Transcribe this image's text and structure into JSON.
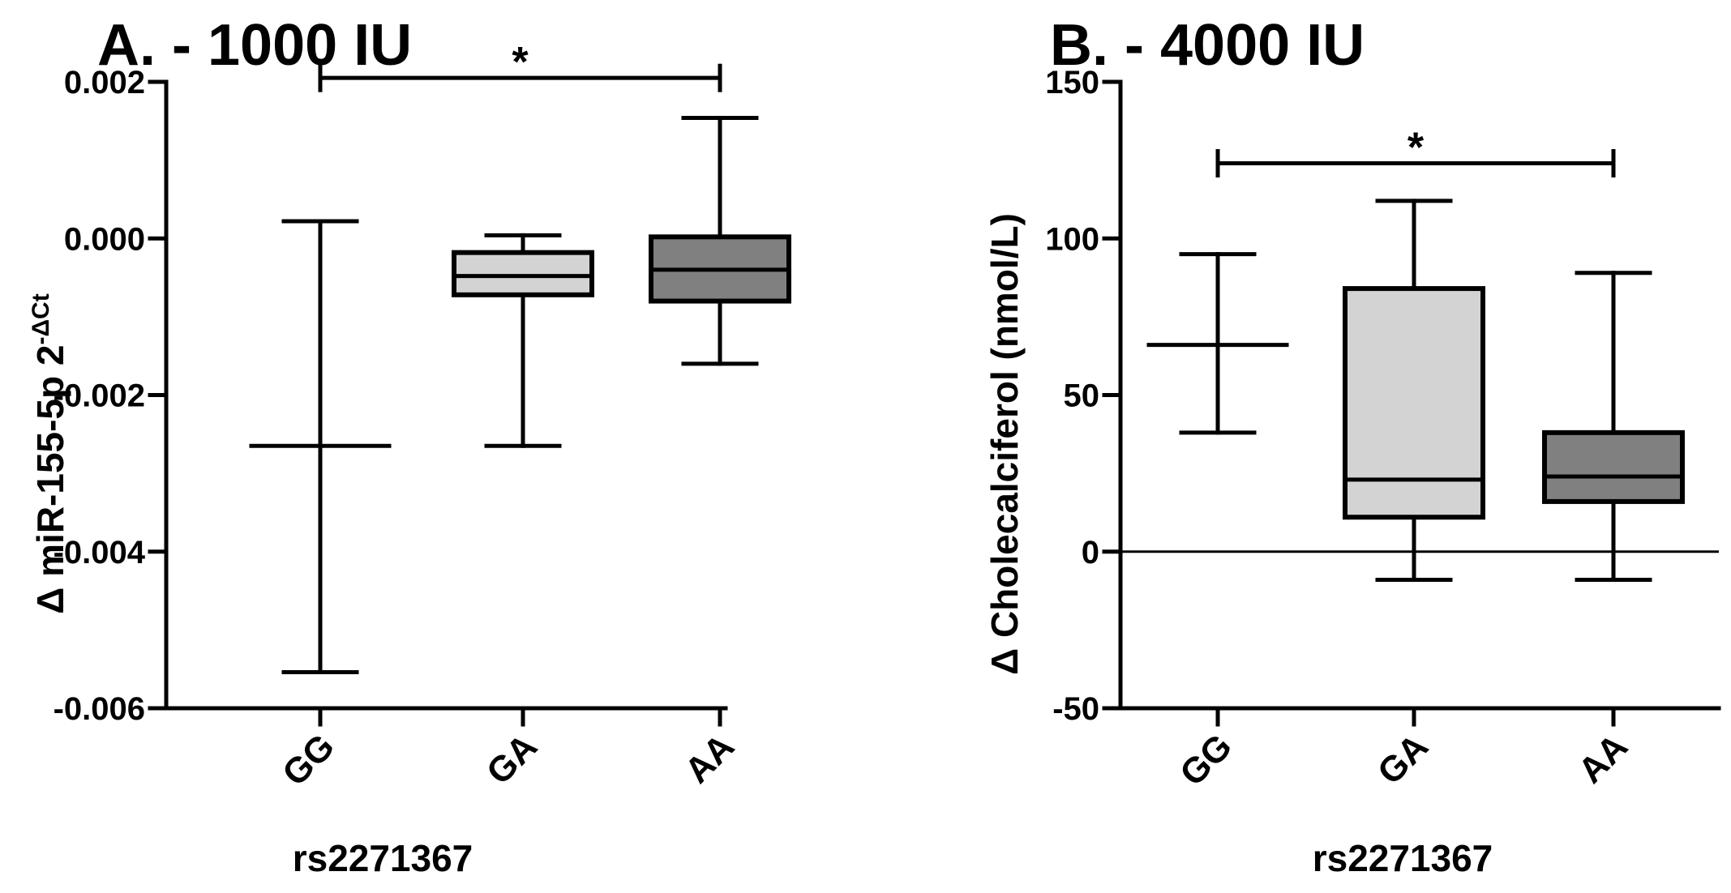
{
  "chart_data": [
    {
      "type": "box",
      "title": "A. - 1000 IU",
      "xlabel": "rs2271367",
      "ylabel_prefix": "Δ miR-155-5p 2",
      "ylabel_sup": "-ΔCt",
      "ylim": [
        -0.006,
        0.002
      ],
      "yticks": [
        -0.006,
        -0.004,
        -0.002,
        0.0,
        0.002
      ],
      "ytick_labels": [
        "-0.006",
        "-0.004",
        "-0.002",
        "0.000",
        "0.002"
      ],
      "categories": [
        "GG",
        "GA",
        "AA"
      ],
      "colors": [
        "#ffffff",
        "#d3d3d3",
        "#808080"
      ],
      "boxes": [
        {
          "min": -0.00554,
          "q1": null,
          "median": -0.00265,
          "q3": null,
          "max": 0.00022
        },
        {
          "min": -0.00265,
          "q1": -0.00072,
          "median": -0.00048,
          "q3": -0.00018,
          "max": 4e-05
        },
        {
          "min": -0.0016,
          "q1": -0.0008,
          "median": -0.0004,
          "q3": 2e-05,
          "max": 0.00154
        }
      ],
      "significance": [
        {
          "from": "GG",
          "to": "AA",
          "label": "*",
          "y": 0.00205
        }
      ],
      "zero_line": false
    },
    {
      "type": "box",
      "title": "B. - 4000 IU",
      "xlabel": "rs2271367",
      "ylabel": "Δ Cholecalciferol (nmol/L)",
      "ylim": [
        -50,
        150
      ],
      "yticks": [
        -50,
        0,
        50,
        100,
        150
      ],
      "ytick_labels": [
        "-50",
        "0",
        "50",
        "100",
        "150"
      ],
      "categories": [
        "GG",
        "GA",
        "AA"
      ],
      "colors": [
        "#ffffff",
        "#d3d3d3",
        "#808080"
      ],
      "boxes": [
        {
          "min": 38,
          "q1": null,
          "median": 66,
          "q3": null,
          "max": 95
        },
        {
          "min": -9,
          "q1": 11,
          "median": 23,
          "q3": 84,
          "max": 112
        },
        {
          "min": -9,
          "q1": 16,
          "median": 24,
          "q3": 38,
          "max": 89
        }
      ],
      "significance": [
        {
          "from": "GG",
          "to": "AA",
          "label": "*",
          "y": 124
        }
      ],
      "zero_line": true
    }
  ]
}
